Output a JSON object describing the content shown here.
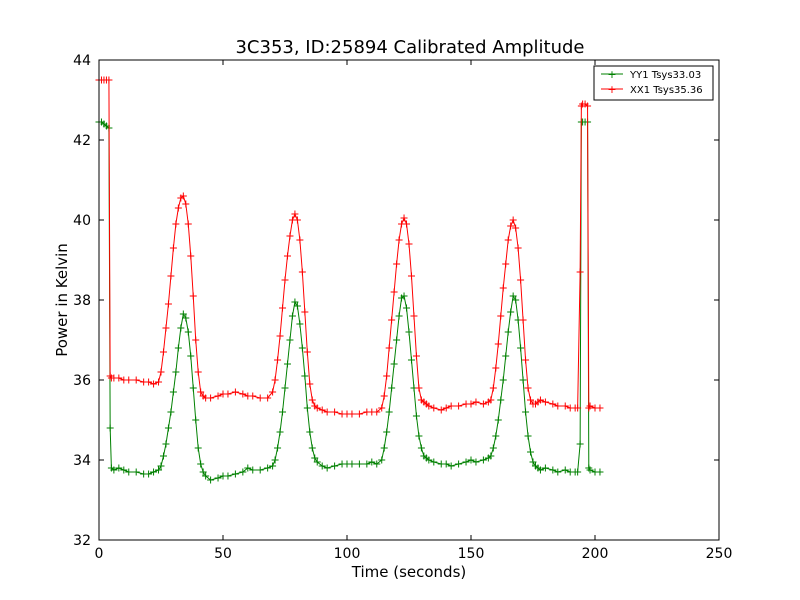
{
  "chart_data": {
    "type": "line",
    "title": "3C353, ID:25894 Calibrated Amplitude",
    "xlabel": "Time (seconds)",
    "ylabel": "Power in Kelvin",
    "xlim": [
      0,
      250
    ],
    "ylim": [
      32,
      44
    ],
    "xticks": [
      "0",
      "50",
      "100",
      "150",
      "200",
      "250"
    ],
    "yticks": [
      "32",
      "34",
      "36",
      "38",
      "40",
      "42",
      "44"
    ],
    "grid": false,
    "legend_position": "top-right",
    "series": [
      {
        "name": "YY1 Tsys33.03",
        "color": "#008000",
        "marker": "+",
        "x": [
          0,
          1,
          2,
          3,
          4,
          4.5,
          5,
          6,
          8,
          10,
          12,
          15,
          18,
          20,
          22,
          24,
          25,
          26,
          27,
          28,
          29,
          30,
          31,
          32,
          33,
          34,
          35,
          36,
          37,
          38,
          39,
          40,
          41,
          42,
          43,
          45,
          48,
          50,
          52,
          55,
          58,
          60,
          62,
          65,
          68,
          70,
          71,
          72,
          73,
          74,
          75,
          76,
          77,
          78,
          79,
          80,
          81,
          82,
          83,
          84,
          85,
          86,
          87,
          88,
          90,
          92,
          95,
          98,
          100,
          102,
          105,
          108,
          110,
          112,
          114,
          115,
          116,
          117,
          118,
          119,
          120,
          121,
          122,
          123,
          124,
          125,
          126,
          127,
          128,
          129,
          130,
          131,
          132,
          133,
          135,
          138,
          140,
          142,
          145,
          148,
          150,
          152,
          155,
          157,
          158,
          159,
          160,
          161,
          162,
          163,
          164,
          165,
          166,
          167,
          168,
          169,
          170,
          171,
          172,
          173,
          174,
          175,
          176,
          177,
          178,
          180,
          183,
          185,
          188,
          190,
          192,
          193,
          194,
          194.5,
          195,
          196,
          197,
          197.5,
          198,
          200,
          202
        ],
        "values": [
          42.45,
          42.45,
          42.4,
          42.35,
          42.3,
          34.8,
          33.8,
          33.75,
          33.8,
          33.75,
          33.7,
          33.7,
          33.65,
          33.65,
          33.7,
          33.75,
          33.85,
          34.1,
          34.4,
          34.8,
          35.2,
          35.7,
          36.2,
          36.8,
          37.3,
          37.65,
          37.55,
          37.2,
          36.6,
          35.8,
          35.0,
          34.3,
          33.9,
          33.7,
          33.6,
          33.5,
          33.55,
          33.6,
          33.6,
          33.65,
          33.7,
          33.8,
          33.75,
          33.75,
          33.8,
          33.85,
          34.0,
          34.3,
          34.7,
          35.2,
          35.8,
          36.4,
          37.0,
          37.6,
          37.95,
          37.85,
          37.4,
          36.8,
          36.1,
          35.3,
          34.7,
          34.3,
          34.05,
          33.95,
          33.85,
          33.8,
          33.85,
          33.9,
          33.9,
          33.9,
          33.9,
          33.9,
          33.95,
          33.9,
          34.0,
          34.3,
          34.7,
          35.2,
          35.8,
          36.4,
          37.0,
          37.6,
          38.05,
          38.1,
          37.8,
          37.2,
          36.5,
          35.8,
          35.1,
          34.6,
          34.3,
          34.1,
          34.05,
          34.0,
          33.95,
          33.9,
          33.9,
          33.85,
          33.9,
          33.95,
          34.0,
          33.95,
          34.0,
          34.05,
          34.1,
          34.3,
          34.6,
          35.0,
          35.5,
          36.0,
          36.6,
          37.2,
          37.7,
          38.1,
          38.0,
          37.5,
          36.8,
          36.0,
          35.2,
          34.6,
          34.2,
          33.95,
          33.85,
          33.8,
          33.75,
          33.8,
          33.75,
          33.7,
          33.75,
          33.7,
          33.7,
          33.7,
          34.4,
          42.45,
          42.45,
          42.45,
          42.45,
          33.8,
          33.75,
          33.7,
          33.7
        ]
      },
      {
        "name": "XX1 Tsys35.36",
        "color": "#ff0000",
        "marker": "+",
        "x": [
          0,
          1,
          2,
          3,
          4,
          4.5,
          5,
          6,
          8,
          10,
          12,
          15,
          18,
          20,
          22,
          24,
          25,
          26,
          27,
          28,
          29,
          30,
          31,
          32,
          33,
          34,
          35,
          36,
          37,
          38,
          39,
          40,
          41,
          42,
          43,
          45,
          48,
          50,
          52,
          55,
          58,
          60,
          62,
          65,
          68,
          70,
          71,
          72,
          73,
          74,
          75,
          76,
          77,
          78,
          79,
          80,
          81,
          82,
          83,
          84,
          85,
          86,
          87,
          88,
          90,
          92,
          95,
          98,
          100,
          102,
          105,
          108,
          110,
          112,
          114,
          115,
          116,
          117,
          118,
          119,
          120,
          121,
          122,
          123,
          124,
          125,
          126,
          127,
          128,
          129,
          130,
          131,
          132,
          133,
          135,
          138,
          140,
          142,
          145,
          148,
          150,
          152,
          155,
          157,
          158,
          159,
          160,
          161,
          162,
          163,
          164,
          165,
          166,
          167,
          168,
          169,
          170,
          171,
          172,
          173,
          174,
          175,
          176,
          177,
          178,
          180,
          183,
          185,
          188,
          190,
          192,
          193,
          194,
          194.5,
          195,
          196,
          197,
          197.5,
          198,
          200,
          202
        ],
        "values": [
          43.5,
          43.5,
          43.5,
          43.5,
          43.5,
          36.1,
          36.05,
          36.05,
          36.05,
          36.0,
          36.0,
          36.0,
          35.95,
          35.95,
          35.9,
          35.95,
          36.2,
          36.7,
          37.3,
          37.9,
          38.6,
          39.3,
          39.9,
          40.3,
          40.55,
          40.6,
          40.4,
          39.9,
          39.1,
          38.1,
          37.0,
          36.2,
          35.7,
          35.6,
          35.55,
          35.55,
          35.6,
          35.65,
          35.65,
          35.7,
          35.65,
          35.6,
          35.6,
          35.55,
          35.55,
          35.7,
          36.0,
          36.5,
          37.1,
          37.8,
          38.5,
          39.1,
          39.6,
          40.0,
          40.15,
          40.0,
          39.5,
          38.7,
          37.7,
          36.7,
          35.9,
          35.5,
          35.35,
          35.3,
          35.25,
          35.2,
          35.2,
          35.15,
          35.15,
          35.15,
          35.15,
          35.2,
          35.2,
          35.2,
          35.3,
          35.6,
          36.1,
          36.8,
          37.5,
          38.2,
          38.9,
          39.5,
          39.9,
          40.05,
          39.9,
          39.4,
          38.6,
          37.6,
          36.6,
          35.8,
          35.5,
          35.45,
          35.4,
          35.35,
          35.3,
          35.25,
          35.3,
          35.35,
          35.35,
          35.4,
          35.4,
          35.45,
          35.4,
          35.45,
          35.5,
          35.8,
          36.3,
          36.9,
          37.6,
          38.3,
          38.9,
          39.5,
          39.85,
          40.0,
          39.8,
          39.3,
          38.5,
          37.5,
          36.5,
          35.8,
          35.5,
          35.4,
          35.4,
          35.45,
          35.5,
          35.45,
          35.4,
          35.35,
          35.35,
          35.3,
          35.3,
          35.3,
          38.7,
          42.85,
          42.9,
          42.9,
          42.85,
          35.3,
          35.35,
          35.3,
          35.3
        ]
      }
    ]
  }
}
